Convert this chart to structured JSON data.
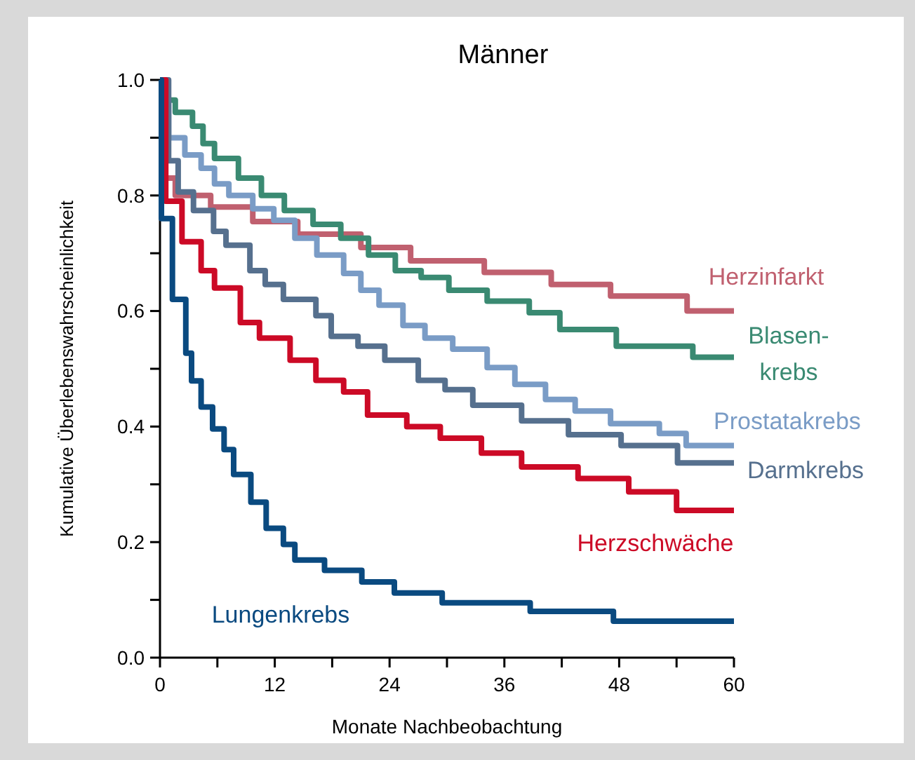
{
  "chart_data": {
    "type": "step",
    "title": "Männer",
    "xlabel": "Monate Nachbeobachtung",
    "ylabel": "Kumulative Überlebenswahrscheinlichkeit",
    "xlim": [
      0,
      60
    ],
    "ylim": [
      0,
      1
    ],
    "xticks": [
      0,
      {
        "value": 6,
        "label": null
      },
      12,
      {
        "value": 18,
        "label": null
      },
      24,
      {
        "value": 30,
        "label": null
      },
      36,
      {
        "value": 42,
        "label": null
      },
      48,
      {
        "value": 54,
        "label": null
      },
      60
    ],
    "yticks": [
      {
        "value": 0,
        "label": "0.0"
      },
      {
        "value": 0.1,
        "label": null
      },
      0.2,
      {
        "value": 0.3,
        "label": null
      },
      0.4,
      {
        "value": 0.5,
        "label": null
      },
      0.6,
      {
        "value": 0.7,
        "label": null
      },
      0.8,
      {
        "value": 0.9,
        "label": null
      },
      {
        "value": 1,
        "label": "1.0"
      }
    ],
    "grid": false,
    "line_style": "solid",
    "marker": "none",
    "series": [
      {
        "name": "Herzinfarkt",
        "color": "#c0606f",
        "x": [
          0,
          0.4,
          1.6,
          5.3,
          9.7,
          14.4,
          21,
          26.2,
          33.9,
          40.9,
          47.1,
          55.1,
          60
        ],
        "values": [
          1,
          0.83,
          0.8,
          0.78,
          0.755,
          0.733,
          0.71,
          0.687,
          0.667,
          0.646,
          0.626,
          0.6,
          0.6
        ]
      },
      {
        "name": "Blasen-\nkrebs",
        "color": "#3a8a72",
        "x": [
          0,
          0.4,
          1.6,
          3.4,
          4.5,
          5.7,
          8.2,
          10.6,
          13,
          16,
          18.9,
          21.8,
          24.6,
          27.3,
          30.2,
          34.2,
          38.6,
          41.8,
          47.7,
          55.7,
          60
        ],
        "values": [
          1,
          0.965,
          0.944,
          0.92,
          0.89,
          0.864,
          0.83,
          0.8,
          0.774,
          0.75,
          0.726,
          0.697,
          0.67,
          0.658,
          0.636,
          0.617,
          0.597,
          0.568,
          0.539,
          0.52,
          0.52
        ]
      },
      {
        "name": "Prostatakrebs",
        "color": "#7a9cc6",
        "x": [
          0,
          0.3,
          0.9,
          2.6,
          4.3,
          5.7,
          7.2,
          9.7,
          11.9,
          14.1,
          16.4,
          19.2,
          21,
          22.9,
          25.4,
          27.7,
          30.6,
          34.2,
          37.1,
          40.3,
          43.4,
          47.1,
          52.2,
          55,
          60
        ],
        "values": [
          1,
          0.96,
          0.9,
          0.87,
          0.847,
          0.82,
          0.8,
          0.777,
          0.757,
          0.726,
          0.697,
          0.665,
          0.636,
          0.61,
          0.575,
          0.553,
          0.534,
          0.502,
          0.473,
          0.447,
          0.427,
          0.405,
          0.388,
          0.367,
          0.367
        ]
      },
      {
        "name": "Darmkrebs",
        "color": "#56708e",
        "x": [
          0,
          0.9,
          1.9,
          3.5,
          5.6,
          6.9,
          9.4,
          11,
          12.9,
          16.3,
          17.9,
          20.7,
          23.5,
          27,
          29.8,
          32.7,
          37.8,
          42.7,
          48.2,
          54.1,
          60
        ],
        "values": [
          1,
          0.86,
          0.806,
          0.774,
          0.738,
          0.714,
          0.67,
          0.646,
          0.62,
          0.592,
          0.556,
          0.539,
          0.515,
          0.48,
          0.464,
          0.437,
          0.41,
          0.386,
          0.367,
          0.337,
          0.337
        ]
      },
      {
        "name": "Herzschwäche",
        "color": "#cc0a26",
        "x": [
          0,
          0.6,
          2.3,
          4.3,
          5.7,
          8.4,
          10.4,
          13.6,
          16.3,
          19.2,
          21.7,
          25.8,
          29.3,
          33.6,
          37.8,
          43.7,
          49,
          54,
          60
        ],
        "values": [
          1,
          0.79,
          0.72,
          0.67,
          0.64,
          0.58,
          0.553,
          0.515,
          0.48,
          0.46,
          0.42,
          0.4,
          0.38,
          0.354,
          0.33,
          0.31,
          0.287,
          0.255,
          0.255
        ]
      },
      {
        "name": "Lungenkrebs",
        "color": "#0a4a80",
        "x": [
          0,
          0.15,
          1.3,
          2.7,
          3.3,
          4.3,
          5.5,
          6.7,
          7.7,
          9.5,
          11.1,
          12.9,
          14.1,
          17.2,
          21.1,
          24.5,
          29.5,
          38.7,
          47.4,
          60
        ],
        "values": [
          1,
          0.76,
          0.62,
          0.527,
          0.479,
          0.434,
          0.396,
          0.36,
          0.317,
          0.269,
          0.224,
          0.196,
          0.169,
          0.151,
          0.131,
          0.112,
          0.095,
          0.08,
          0.063,
          0.063
        ]
      }
    ]
  }
}
